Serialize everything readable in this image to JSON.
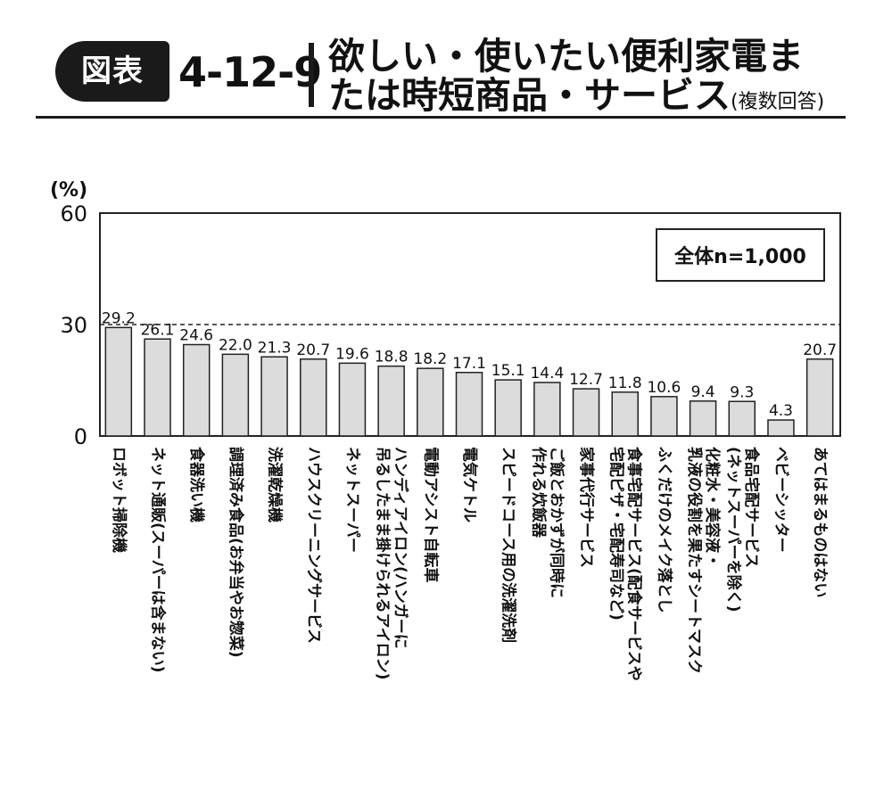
{
  "header": {
    "badge": "図表",
    "number": "4-12-9",
    "title_line1": "欲しい・使いたい便利家電ま",
    "title_line2": "たは時短商品・サービス",
    "title_note": "(複数回答)"
  },
  "chart_data": {
    "type": "bar",
    "ylabel": "(%)",
    "ylim": [
      0,
      60
    ],
    "yticks": [
      0,
      30,
      60
    ],
    "reference_line": 30,
    "annotation": "全体n=1,000",
    "categories": [
      "ロボット掃除機",
      "ネット通販(スーパーは含まない)",
      "食器洗い機",
      "調理済み食品(お弁当やお惣菜)",
      "洗濯乾燥機",
      "ハウスクリーニングサービス",
      "ネットスーパー",
      "ハンディアイロン(ハンガーに吊るしたまま掛けられるアイロン)",
      "電動アシスト自転車",
      "電気ケトル",
      "スピードコース用の洗濯洗剤",
      "ご飯とおかずが同時に作れる炊飯器",
      "家事代行サービス",
      "食事宅配サービス(配食サービスや宅配ピザ・宅配寿司など)",
      "ふくだけのメイク落とし",
      "化粧水・美容液・乳液の役割を果たすシートマスク",
      "食品宅配サービス(ネットスーパーを除く)",
      "ベビーシッター",
      "あてはまるものはない"
    ],
    "label_lines": [
      [
        "ロボット掃除機"
      ],
      [
        "ネット通販(スーパーは含まない)"
      ],
      [
        "食器洗い機"
      ],
      [
        "調理済み食品(お弁当やお惣菜)"
      ],
      [
        "洗濯乾燥機"
      ],
      [
        "ハウスクリーニングサービス"
      ],
      [
        "ネットスーパー"
      ],
      [
        "ハンディアイロン(ハンガーに",
        "吊るしたまま掛けられるアイロン)"
      ],
      [
        "電動アシスト自転車"
      ],
      [
        "電気ケトル"
      ],
      [
        "スピードコース用の洗濯洗剤"
      ],
      [
        "ご飯とおかずが同時に",
        "作れる炊飯器"
      ],
      [
        "家事代行サービス"
      ],
      [
        "食事宅配サービス(配食サービスや",
        "宅配ピザ・宅配寿司など)"
      ],
      [
        "ふくだけのメイク落とし"
      ],
      [
        "化粧水・美容液・",
        "乳液の役割を果たすシートマスク"
      ],
      [
        "食品宅配サービス",
        "(ネットスーパーを除く)"
      ],
      [
        "ベビーシッター"
      ],
      [
        "あてはまるものはない"
      ]
    ],
    "values": [
      29.2,
      26.1,
      24.6,
      22.0,
      21.3,
      20.7,
      19.6,
      18.8,
      18.2,
      17.1,
      15.1,
      14.4,
      12.7,
      11.8,
      10.6,
      9.4,
      9.3,
      4.3,
      20.7
    ],
    "value_labels": [
      "29.2",
      "26.1",
      "24.6",
      "22.0",
      "21.3",
      "20.7",
      "19.6",
      "18.8",
      "18.2",
      "17.1",
      "15.1",
      "14.4",
      "12.7",
      "11.8",
      "10.6",
      "9.4",
      "9.3",
      "4.3",
      "20.7"
    ],
    "colors": {
      "bar_fill": "#dcdcdc",
      "bar_stroke": "#222222",
      "axis": "#222222"
    }
  }
}
